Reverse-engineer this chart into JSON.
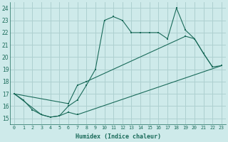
{
  "xlabel": "Humidex (Indice chaleur)",
  "bg_color": "#ceeaea",
  "grid_color": "#aed0d0",
  "line_color": "#1a6b5a",
  "xlim": [
    -0.5,
    23.5
  ],
  "ylim": [
    14.5,
    24.5
  ],
  "xticks": [
    0,
    1,
    2,
    3,
    4,
    5,
    6,
    7,
    8,
    9,
    10,
    11,
    12,
    13,
    14,
    15,
    16,
    17,
    18,
    19,
    20,
    21,
    22,
    23
  ],
  "yticks": [
    15,
    16,
    17,
    18,
    19,
    20,
    21,
    22,
    23,
    24
  ],
  "series": [
    {
      "x": [
        0,
        1,
        2,
        3,
        4,
        5,
        6,
        7,
        8,
        9,
        10,
        11,
        12,
        13,
        14,
        15,
        16,
        17,
        18,
        19,
        20,
        21,
        22
      ],
      "y": [
        17.0,
        16.5,
        15.7,
        15.3,
        15.1,
        15.2,
        16.0,
        16.5,
        17.7,
        19.0,
        23.0,
        23.3,
        23.0,
        22.0,
        22.0,
        22.0,
        22.0,
        21.5,
        24.0,
        22.2,
        21.5,
        20.3,
        19.2
      ]
    },
    {
      "x": [
        0,
        6,
        7,
        8,
        19,
        20,
        21,
        22,
        23
      ],
      "y": [
        17.0,
        16.2,
        17.7,
        18.0,
        21.7,
        21.5,
        20.3,
        19.2,
        19.3
      ]
    },
    {
      "x": [
        0,
        3,
        4,
        5,
        6,
        7,
        23
      ],
      "y": [
        17.0,
        15.3,
        15.1,
        15.2,
        15.5,
        15.3,
        19.3
      ]
    }
  ]
}
